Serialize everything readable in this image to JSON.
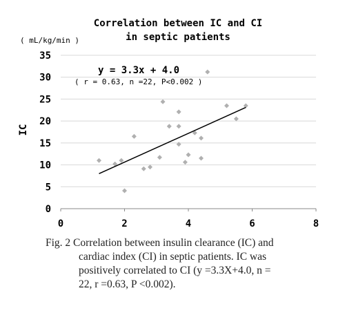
{
  "chart_data": {
    "type": "scatter",
    "title": "Correlation between IC and CI",
    "subtitle": "in septic patients",
    "y_unit": "( mL/kg/min )",
    "ylabel": "IC",
    "annotations": [
      "y = 3.3x + 4.0",
      "( r = 0.63, n =22, P<0.002 )"
    ],
    "points": {
      "color": "#b0b0b0",
      "x": [
        1.2,
        1.7,
        1.9,
        2.0,
        2.3,
        2.6,
        2.8,
        3.1,
        3.2,
        3.4,
        3.7,
        3.7,
        3.7,
        3.9,
        4.0,
        4.2,
        4.4,
        4.4,
        4.6,
        5.2,
        5.5,
        5.8
      ],
      "y": [
        11.0,
        10.2,
        11.0,
        4.1,
        16.5,
        9.1,
        9.5,
        11.7,
        24.4,
        18.8,
        22.1,
        18.8,
        14.7,
        10.6,
        12.3,
        17.3,
        16.1,
        11.5,
        31.2,
        23.5,
        20.5,
        23.5
      ]
    },
    "trendline": {
      "color": "#000000",
      "x": [
        1.2,
        5.8
      ],
      "y": [
        8.0,
        23.1
      ]
    },
    "xlim": [
      0,
      8
    ],
    "xticks": [
      0,
      2,
      4,
      6,
      8
    ],
    "ylim": [
      0,
      35
    ],
    "yticks": [
      0,
      5,
      10,
      15,
      20,
      25,
      30,
      35
    ],
    "grid": true
  },
  "caption": [
    "Fig. 2  Correlation between insulin clearance (IC) and",
    "cardiac index (CI) in septic patients. IC was",
    "positively correlated to CI (y =3.3X+4.0, n =",
    "22, r =0.63, P <0.002)."
  ]
}
